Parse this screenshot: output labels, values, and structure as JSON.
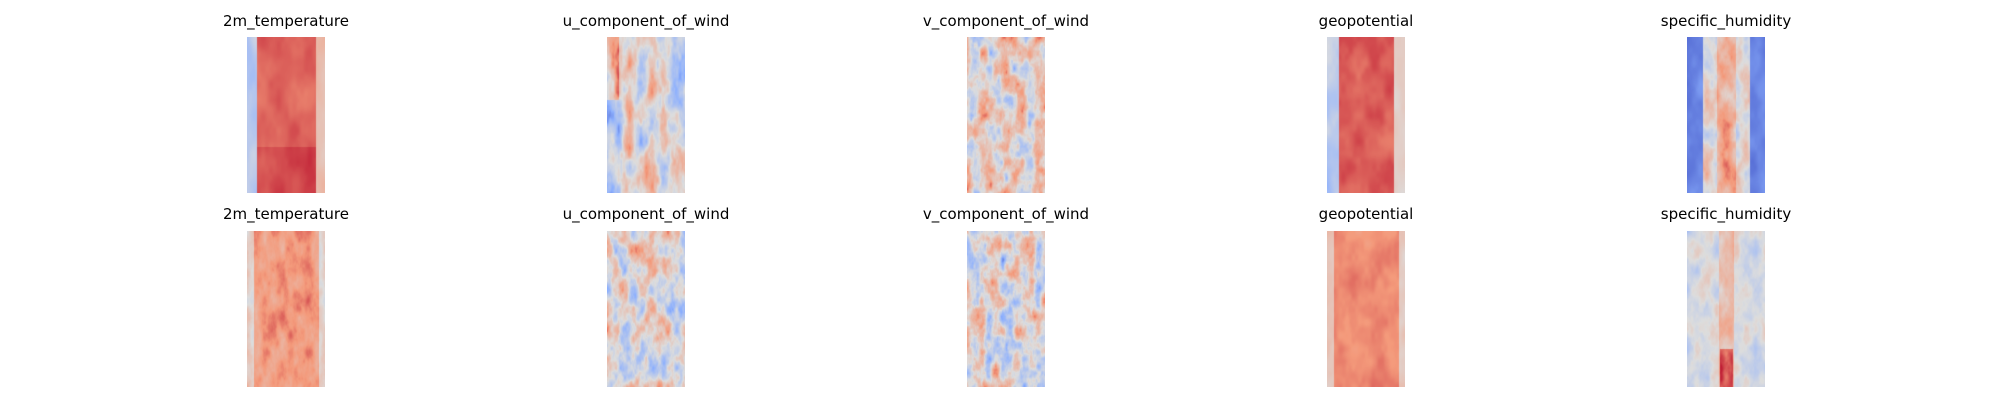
{
  "chart_data": [
    {
      "type": "heatmap",
      "title": "2m_temperature",
      "row": 1,
      "colormap": "coolwarm",
      "pattern": "temperature_top"
    },
    {
      "type": "heatmap",
      "title": "u_component_of_wind",
      "row": 1,
      "colormap": "coolwarm",
      "pattern": "wind_u_top"
    },
    {
      "type": "heatmap",
      "title": "v_component_of_wind",
      "row": 1,
      "colormap": "coolwarm",
      "pattern": "wind_v_top"
    },
    {
      "type": "heatmap",
      "title": "geopotential",
      "row": 1,
      "colormap": "coolwarm",
      "pattern": "geopotential_top"
    },
    {
      "type": "heatmap",
      "title": "specific_humidity",
      "row": 1,
      "colormap": "coolwarm",
      "pattern": "humidity_top"
    },
    {
      "type": "heatmap",
      "title": "2m_temperature",
      "row": 2,
      "colormap": "coolwarm",
      "pattern": "temperature_bottom"
    },
    {
      "type": "heatmap",
      "title": "u_component_of_wind",
      "row": 2,
      "colormap": "coolwarm",
      "pattern": "wind_u_bottom"
    },
    {
      "type": "heatmap",
      "title": "v_component_of_wind",
      "row": 2,
      "colormap": "coolwarm",
      "pattern": "wind_v_bottom"
    },
    {
      "type": "heatmap",
      "title": "geopotential",
      "row": 2,
      "colormap": "coolwarm",
      "pattern": "geopotential_bottom"
    },
    {
      "type": "heatmap",
      "title": "specific_humidity",
      "row": 2,
      "colormap": "coolwarm",
      "pattern": "humidity_bottom"
    }
  ]
}
